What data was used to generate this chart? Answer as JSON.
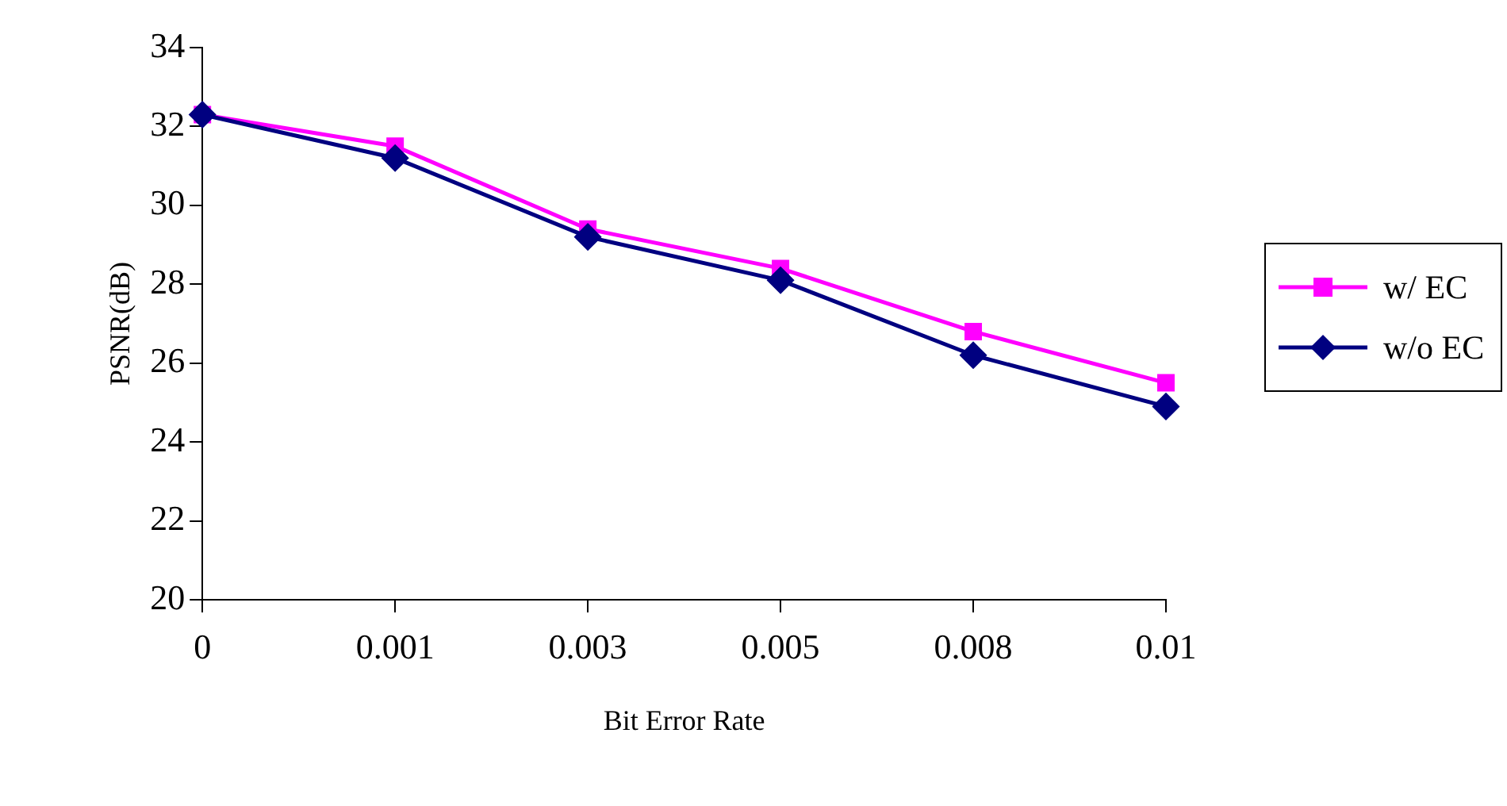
{
  "chart_data": {
    "type": "line",
    "xlabel": "Bit Error Rate",
    "ylabel": "PSNR(dB)",
    "categories": [
      "0",
      "0.001",
      "0.003",
      "0.005",
      "0.008",
      "0.01"
    ],
    "series": [
      {
        "name": "w/ EC",
        "color": "#ff00ff",
        "marker": "square",
        "values": [
          32.3,
          31.5,
          29.4,
          28.4,
          26.8,
          25.5
        ]
      },
      {
        "name": "w/o EC",
        "color": "#000080",
        "marker": "diamond",
        "values": [
          32.3,
          31.2,
          29.2,
          28.1,
          26.2,
          24.9
        ]
      }
    ],
    "ylim": [
      20,
      34
    ],
    "yticks": [
      20,
      22,
      24,
      26,
      28,
      30,
      32,
      34
    ],
    "grid": false,
    "legend": "right",
    "line_style": "solid"
  }
}
